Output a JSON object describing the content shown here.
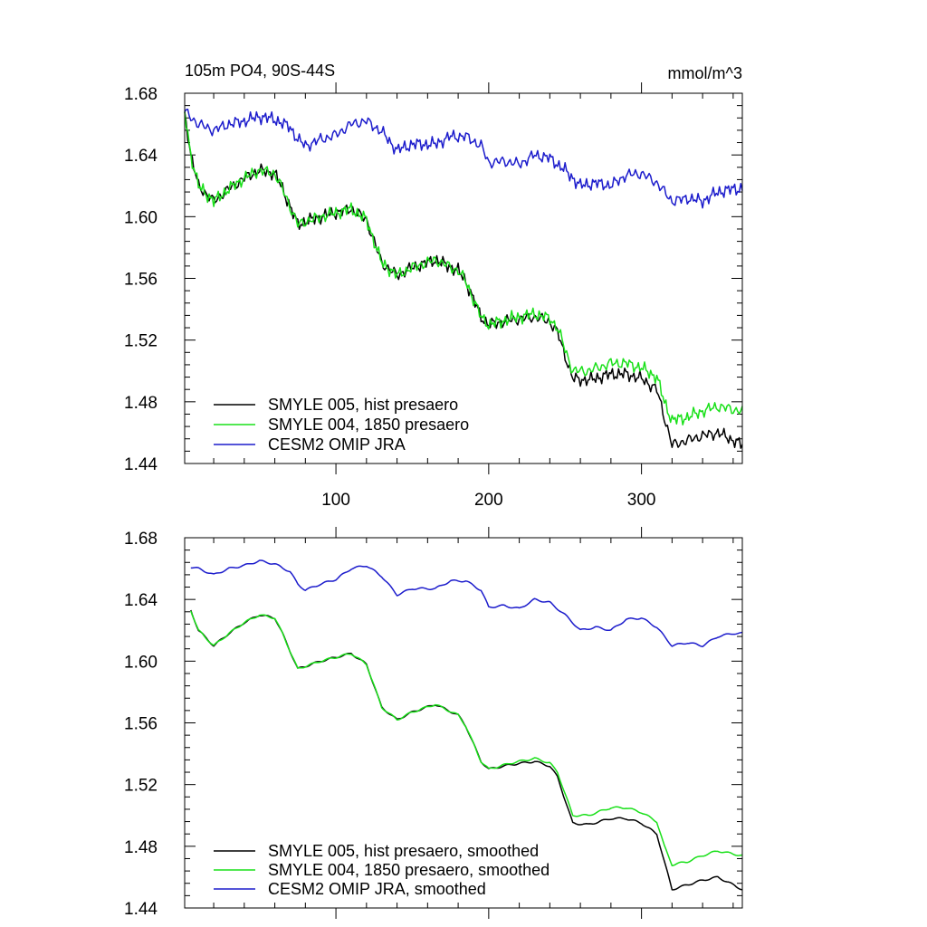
{
  "chart_data": [
    {
      "type": "line",
      "title_left": "105m PO4, 90S-44S",
      "title_right": "mmol/m^3",
      "xlim": [
        1,
        366
      ],
      "ylim": [
        1.44,
        1.68
      ],
      "x_major_ticks": [
        100,
        200,
        300
      ],
      "x_tick_labels": [
        "100",
        "200",
        "300"
      ],
      "y_ticks": [
        1.44,
        1.48,
        1.52,
        1.56,
        1.6,
        1.64,
        1.68
      ],
      "y_tick_labels": [
        "1.44",
        "1.48",
        "1.52",
        "1.56",
        "1.60",
        "1.64",
        "1.68"
      ],
      "legend": [
        "SMYLE 005, hist presaero",
        "SMYLE 004, 1850 presaero",
        "CESM2 OMIP JRA"
      ],
      "series": [
        {
          "name": "SMYLE 005, hist presaero",
          "color": "#000000",
          "x": [
            1,
            5,
            10,
            20,
            30,
            40,
            50,
            60,
            65,
            75,
            90,
            110,
            120,
            130,
            140,
            150,
            165,
            180,
            185,
            195,
            200,
            215,
            230,
            240,
            245,
            255,
            265,
            280,
            290,
            300,
            310,
            315,
            320,
            330,
            340,
            350,
            360,
            366
          ],
          "values": [
            1.668,
            1.64,
            1.62,
            1.61,
            1.618,
            1.625,
            1.63,
            1.628,
            1.618,
            1.595,
            1.6,
            1.605,
            1.598,
            1.57,
            1.562,
            1.567,
            1.572,
            1.565,
            1.558,
            1.535,
            1.53,
            1.533,
            1.535,
            1.532,
            1.525,
            1.495,
            1.494,
            1.498,
            1.498,
            1.495,
            1.488,
            1.47,
            1.452,
            1.455,
            1.458,
            1.46,
            1.455,
            1.452
          ]
        },
        {
          "name": "SMYLE 004, 1850 presaero",
          "color": "#19e019",
          "x": [
            1,
            5,
            10,
            20,
            30,
            40,
            50,
            60,
            65,
            75,
            90,
            110,
            120,
            130,
            140,
            150,
            165,
            180,
            185,
            195,
            200,
            215,
            230,
            240,
            245,
            255,
            265,
            280,
            290,
            300,
            310,
            315,
            320,
            330,
            340,
            350,
            360,
            366
          ],
          "values": [
            1.668,
            1.64,
            1.62,
            1.61,
            1.618,
            1.625,
            1.63,
            1.628,
            1.618,
            1.595,
            1.6,
            1.605,
            1.598,
            1.57,
            1.562,
            1.567,
            1.572,
            1.565,
            1.558,
            1.535,
            1.53,
            1.534,
            1.537,
            1.534,
            1.528,
            1.5,
            1.5,
            1.505,
            1.505,
            1.502,
            1.496,
            1.48,
            1.468,
            1.47,
            1.474,
            1.477,
            1.475,
            1.474
          ]
        },
        {
          "name": "CESM2 OMIP JRA",
          "color": "#1c1ccc",
          "x": [
            1,
            10,
            20,
            30,
            40,
            50,
            60,
            70,
            75,
            80,
            90,
            100,
            110,
            120,
            130,
            140,
            150,
            165,
            175,
            185,
            195,
            200,
            210,
            220,
            230,
            240,
            250,
            260,
            270,
            280,
            290,
            300,
            310,
            320,
            330,
            340,
            350,
            360,
            366
          ],
          "values": [
            1.668,
            1.66,
            1.656,
            1.66,
            1.662,
            1.665,
            1.663,
            1.658,
            1.65,
            1.646,
            1.65,
            1.653,
            1.66,
            1.662,
            1.655,
            1.643,
            1.647,
            1.647,
            1.652,
            1.652,
            1.646,
            1.635,
            1.636,
            1.634,
            1.64,
            1.638,
            1.63,
            1.62,
            1.622,
            1.62,
            1.627,
            1.628,
            1.622,
            1.61,
            1.612,
            1.61,
            1.616,
            1.618,
            1.618
          ]
        }
      ]
    },
    {
      "type": "line",
      "xlim": [
        1,
        366
      ],
      "ylim": [
        1.44,
        1.68
      ],
      "x_major_ticks": [
        100,
        200,
        300
      ],
      "y_ticks": [
        1.44,
        1.48,
        1.52,
        1.56,
        1.6,
        1.64,
        1.68
      ],
      "y_tick_labels": [
        "1.44",
        "1.48",
        "1.52",
        "1.56",
        "1.60",
        "1.64",
        "1.68"
      ],
      "legend": [
        "SMYLE 005, hist presaero, smoothed",
        "SMYLE 004, 1850 presaero, smoothed",
        "CESM2 OMIP JRA, smoothed"
      ],
      "series": [
        {
          "name": "SMYLE 005, hist presaero, smoothed",
          "color": "#000000",
          "x": [
            5,
            10,
            20,
            30,
            40,
            50,
            60,
            65,
            75,
            90,
            110,
            120,
            130,
            140,
            150,
            165,
            180,
            185,
            195,
            200,
            215,
            230,
            240,
            245,
            255,
            265,
            280,
            290,
            300,
            310,
            315,
            320,
            330,
            340,
            350,
            360,
            366
          ],
          "values": [
            1.633,
            1.62,
            1.61,
            1.618,
            1.625,
            1.63,
            1.628,
            1.618,
            1.595,
            1.6,
            1.605,
            1.598,
            1.57,
            1.562,
            1.567,
            1.572,
            1.565,
            1.558,
            1.535,
            1.53,
            1.533,
            1.535,
            1.532,
            1.525,
            1.495,
            1.494,
            1.498,
            1.498,
            1.495,
            1.488,
            1.47,
            1.452,
            1.455,
            1.458,
            1.46,
            1.455,
            1.452
          ]
        },
        {
          "name": "SMYLE 004, 1850 presaero, smoothed",
          "color": "#19e019",
          "x": [
            5,
            10,
            20,
            30,
            40,
            50,
            60,
            65,
            75,
            90,
            110,
            120,
            130,
            140,
            150,
            165,
            180,
            185,
            195,
            200,
            215,
            230,
            240,
            245,
            255,
            265,
            280,
            290,
            300,
            310,
            315,
            320,
            330,
            340,
            350,
            360,
            366
          ],
          "values": [
            1.633,
            1.62,
            1.61,
            1.618,
            1.625,
            1.63,
            1.628,
            1.618,
            1.595,
            1.6,
            1.605,
            1.598,
            1.57,
            1.562,
            1.567,
            1.572,
            1.565,
            1.558,
            1.535,
            1.53,
            1.534,
            1.537,
            1.534,
            1.528,
            1.5,
            1.5,
            1.505,
            1.505,
            1.502,
            1.496,
            1.48,
            1.468,
            1.47,
            1.474,
            1.477,
            1.475,
            1.474
          ]
        },
        {
          "name": "CESM2 OMIP JRA, smoothed",
          "color": "#1c1ccc",
          "x": [
            5,
            10,
            20,
            30,
            40,
            50,
            60,
            70,
            75,
            80,
            90,
            100,
            110,
            120,
            130,
            140,
            150,
            165,
            175,
            185,
            195,
            200,
            210,
            220,
            230,
            240,
            250,
            260,
            270,
            280,
            290,
            300,
            310,
            320,
            330,
            340,
            350,
            360,
            366
          ],
          "values": [
            1.661,
            1.66,
            1.656,
            1.66,
            1.662,
            1.665,
            1.663,
            1.658,
            1.65,
            1.646,
            1.65,
            1.653,
            1.66,
            1.662,
            1.655,
            1.643,
            1.647,
            1.647,
            1.652,
            1.652,
            1.646,
            1.635,
            1.636,
            1.634,
            1.64,
            1.638,
            1.63,
            1.62,
            1.622,
            1.62,
            1.627,
            1.628,
            1.622,
            1.61,
            1.612,
            1.61,
            1.616,
            1.618,
            1.618
          ]
        }
      ]
    }
  ]
}
